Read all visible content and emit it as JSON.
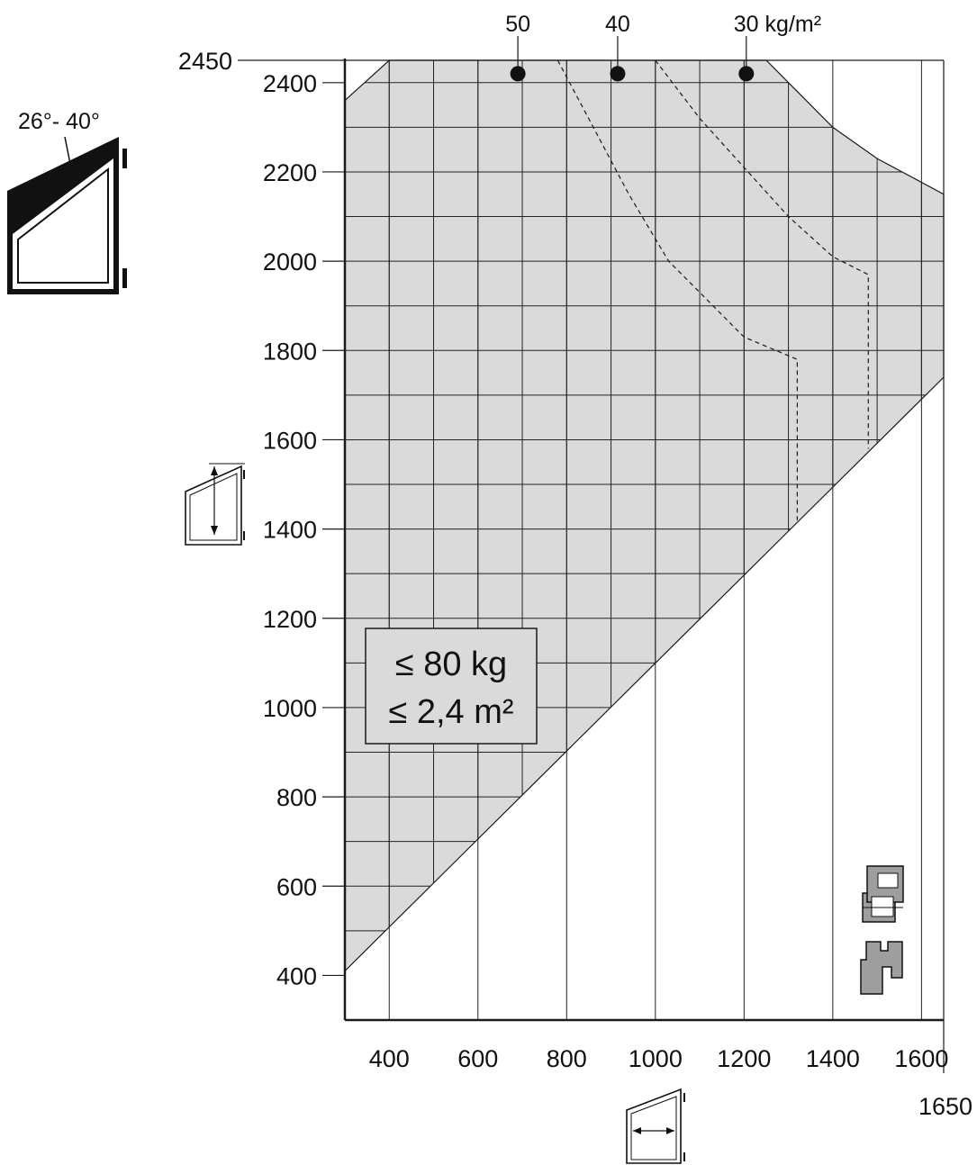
{
  "chart_data": {
    "type": "area",
    "xlim": [
      300,
      1650
    ],
    "ylim": [
      300,
      2450
    ],
    "x_ticks": [
      400,
      600,
      800,
      1000,
      1200,
      1400,
      1600
    ],
    "x_tick_labels": [
      "400",
      "600",
      "800",
      "1000",
      "1200",
      "1400",
      "1600"
    ],
    "x_extra_tick": {
      "value": 1650,
      "label": "1650"
    },
    "y_ticks": [
      400,
      600,
      800,
      1000,
      1200,
      1400,
      1600,
      1800,
      2000,
      2200,
      2400
    ],
    "y_tick_labels": [
      "400",
      "600",
      "800",
      "1000",
      "1200",
      "1400",
      "1600",
      "1800",
      "2000",
      "2200",
      "2400"
    ],
    "y_extra_tick": {
      "value": 2450,
      "label": "2450"
    },
    "grid": true,
    "grid_step": 100,
    "permissible_region": [
      [
        300,
        2360
      ],
      [
        400,
        2450
      ],
      [
        1250,
        2450
      ],
      [
        1400,
        2300
      ],
      [
        1500,
        2230
      ],
      [
        1650,
        2150
      ],
      [
        1650,
        1740
      ],
      [
        300,
        410
      ]
    ],
    "weight_curves": [
      {
        "label": "50",
        "marker": [
          690,
          2420
        ]
      },
      {
        "label": "40",
        "marker": [
          915,
          2420
        ],
        "points": [
          [
            780,
            2450
          ],
          [
            860,
            2300
          ],
          [
            940,
            2150
          ],
          [
            1030,
            2000
          ],
          [
            1100,
            1930
          ],
          [
            1200,
            1830
          ],
          [
            1320,
            1780
          ],
          [
            1320,
            1420
          ]
        ]
      },
      {
        "label": "30 kg/m²",
        "marker": [
          1205,
          2420
        ],
        "points": [
          [
            1000,
            2450
          ],
          [
            1100,
            2320
          ],
          [
            1200,
            2210
          ],
          [
            1300,
            2100
          ],
          [
            1400,
            2010
          ],
          [
            1480,
            1970
          ],
          [
            1480,
            1580
          ]
        ]
      }
    ],
    "limits": [
      "≤ 80 kg",
      "≤ 2,4 m²"
    ],
    "angle_label": "26°- 40°",
    "colors": {
      "region": "#dadada",
      "line": "#1a1a1a",
      "marker": "#111111",
      "profile": "#9e9e9e"
    }
  }
}
